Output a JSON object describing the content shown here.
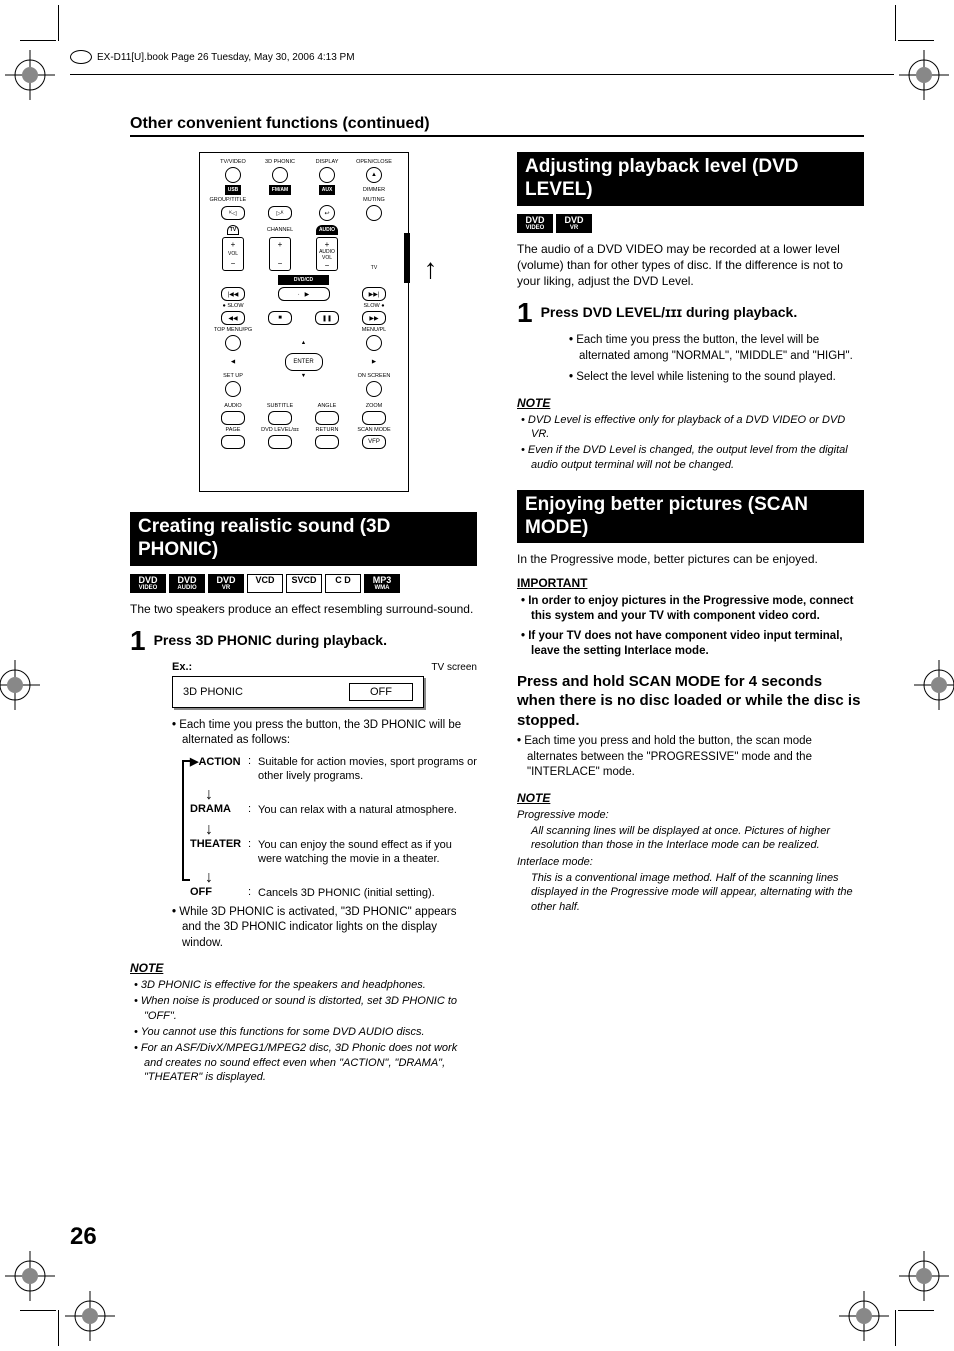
{
  "header": "EX-D11[U].book  Page 26  Tuesday, May 30, 2006  4:13 PM",
  "page_title": "Other convenient functions (continued)",
  "page_number": "26",
  "remote": {
    "row1": [
      "TV/VIDEO",
      "3D PHONIC",
      "DISPLAY",
      "OPEN/CLOSE"
    ],
    "row2": [
      "USB",
      "FM/AM",
      "AUX",
      "DIMMER"
    ],
    "row3l": "GROUP/TITLE",
    "row3r": "MUTING",
    "row4a": "TV",
    "row4b": "CHANNEL",
    "row4c": "AUDIO",
    "vol": "VOL",
    "audio": "AUDIO",
    "tv": "TV",
    "dvdcd": "DVD/CD",
    "slow1": "● SLOW",
    "slow2": "SLOW ●",
    "topmenu": "TOP MENU/PG",
    "menupl": "MENU/PL",
    "enter": "ENTER",
    "setup": "SET UP",
    "onscreen": "ON SCREEN",
    "bottom1": [
      "AUDIO",
      "SUBTITLE",
      "ANGLE",
      "ZOOM"
    ],
    "bottom2": [
      "PAGE",
      "DVD LEVEL/ɪɪɪ",
      "RETURN",
      "SCAN MODE"
    ],
    "vfp": "VFP"
  },
  "col1": {
    "section_title": "Creating realistic sound (3D PHONIC)",
    "badges": [
      {
        "t": "DVD",
        "s": "VIDEO",
        "black": true
      },
      {
        "t": "DVD",
        "s": "AUDIO",
        "black": true
      },
      {
        "t": "DVD",
        "s": "VR",
        "black": true
      },
      {
        "t": "VCD",
        "s": "",
        "black": false
      },
      {
        "t": "SVCD",
        "s": "",
        "black": false
      },
      {
        "t": "C D",
        "s": "",
        "black": false
      },
      {
        "t": "MP3",
        "s": "WMA",
        "black": true
      }
    ],
    "intro": "The two speakers produce an effect resembling surround-sound.",
    "step1_num": "1",
    "step1_title": "Press 3D PHONIC during playback.",
    "ex": "Ex.:",
    "tvscreen_label": "TV screen",
    "tv_left": "3D PHONIC",
    "tv_right": "OFF",
    "bullet1": "Each time you press the button, the 3D PHONIC will be alternated as follows:",
    "modes": [
      {
        "name": "ACTION",
        "desc": "Suitable for action movies, sport programs or other lively programs."
      },
      {
        "name": "DRAMA",
        "desc": "You can relax with a natural atmosphere."
      },
      {
        "name": "THEATER",
        "desc": "You can enjoy the sound effect as if you were watching the movie in a theater."
      },
      {
        "name": "OFF",
        "desc": "Cancels 3D PHONIC (initial setting)."
      }
    ],
    "bullet2": "While 3D PHONIC is activated, \"3D PHONIC\" appears and the 3D PHONIC indicator lights on the display window.",
    "note_title": "NOTE",
    "notes": [
      "3D PHONIC is effective for the speakers and headphones.",
      "When noise is produced or sound is distorted, set 3D PHONIC to \"OFF\".",
      "You cannot use this functions for some DVD AUDIO discs.",
      "For an ASF/DivX/MPEG1/MPEG2 disc, 3D Phonic does not work and creates no sound effect even when \"ACTION\", \"DRAMA\", \"THEATER\" is displayed."
    ]
  },
  "col2": {
    "section1_title": "Adjusting playback level (DVD LEVEL)",
    "badges1": [
      {
        "t": "DVD",
        "s": "VIDEO",
        "black": true
      },
      {
        "t": "DVD",
        "s": "VR",
        "black": true
      }
    ],
    "intro1": "The audio of a DVD VIDEO may be recorded at a lower level (volume) than for other types of disc. If the difference is not to your liking, adjust the DVD Level.",
    "step1_num": "1",
    "step1_title": "Press DVD LEVEL/ɪɪɪ during playback.",
    "step1_b1": "Each time you press the button, the level will be alternated among \"NORMAL\", \"MIDDLE\" and \"HIGH\".",
    "step1_b2": "Select the level while listening to the sound played.",
    "note1_title": "NOTE",
    "notes1": [
      "DVD Level is effective only for playback of a DVD VIDEO or DVD VR.",
      "Even if the DVD Level is changed, the output level from the digital audio output terminal will not be changed."
    ],
    "section2_title": "Enjoying better pictures (SCAN MODE)",
    "intro2": "In the Progressive mode, better pictures can be enjoyed.",
    "important_title": "IMPORTANT",
    "important": [
      "In order to enjoy pictures in the Progressive mode, connect this system and your TV with component video cord.",
      "If your TV does not have component video input terminal, leave the setting Interlace mode."
    ],
    "press_hold": "Press and hold SCAN MODE for 4 seconds when there is no disc loaded or while the disc is stopped.",
    "ph_bullet": "Each time you press and hold the button, the scan mode alternates between the \"PROGRESSIVE\" mode and the \"INTERLACE\" mode.",
    "note2_title": "NOTE",
    "prog_label": "Progressive mode:",
    "prog_text": "All scanning lines will be displayed at once. Pictures of higher resolution than those in the Interlace mode can be realized.",
    "inter_label": "Interlace mode:",
    "inter_text": "This is a conventional image method. Half of the scanning lines displayed in the Progressive mode will appear, alternating with the other half."
  }
}
